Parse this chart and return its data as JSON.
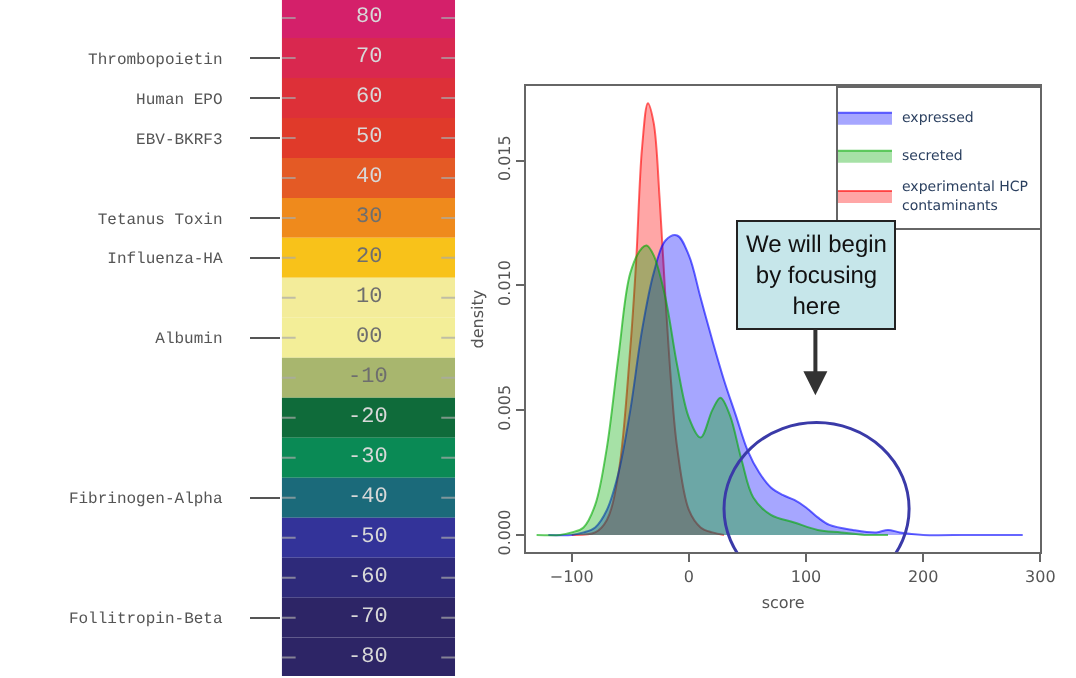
{
  "chart_data": [
    {
      "type": "heatmap",
      "categories": [
        null
      ],
      "y_categories": [
        null,
        null,
        null,
        null,
        null,
        null,
        null,
        null,
        null,
        null,
        null,
        null,
        null,
        null,
        null,
        null,
        null
      ],
      "y2_categories": [
        null,
        "Thrombopoietin",
        "Human EPO",
        "EBV-BKRF3",
        null,
        "Tetanus Toxin",
        "Influenza-HA",
        null,
        "Albumin",
        null,
        null,
        null,
        "Fibrinogen-Alpha",
        null,
        null,
        "Follitropin-Beta",
        null
      ],
      "cells": [
        [
          80
        ],
        [
          70
        ],
        [
          60
        ],
        [
          50
        ],
        [
          40
        ],
        [
          30
        ],
        [
          20
        ],
        [
          10
        ],
        [
          0
        ],
        [
          -10
        ],
        [
          -20
        ],
        [
          -30
        ],
        [
          -40
        ],
        [
          -50
        ],
        [
          -60
        ],
        [
          -70
        ],
        [
          -80
        ]
      ],
      "cell_labels": [
        [
          "80"
        ],
        [
          "70"
        ],
        [
          "60"
        ],
        [
          "50"
        ],
        [
          "40"
        ],
        [
          "30"
        ],
        [
          "20"
        ],
        [
          "10"
        ],
        [
          "00"
        ],
        [
          "-10"
        ],
        [
          "-20"
        ],
        [
          "-30"
        ],
        [
          "-40"
        ],
        [
          "-50"
        ],
        [
          "-60"
        ],
        [
          "-70"
        ],
        [
          "-80"
        ]
      ],
      "colors": [
        "#d4206a",
        "#d9284f",
        "#dd3038",
        "#e03a2a",
        "#e45a25",
        "#ef8a1c",
        "#f8c21a",
        "#f3ec9a",
        "#f3ee98",
        "#a8b66e",
        "#0f6b3a",
        "#0a8a55",
        "#1b6a7a",
        "#333399",
        "#2e2a7a",
        "#2d2566",
        "#2d2566"
      ]
    },
    {
      "type": "area",
      "xlabel": "score",
      "ylabel": "density",
      "xlim": [
        -139,
        300
      ],
      "xticks": [
        -100,
        0,
        100,
        200,
        300
      ],
      "ylim": [
        -0.0007,
        0.018
      ],
      "yticks": [
        {
          "value": 0,
          "label": "0.000"
        },
        {
          "value": 0.005,
          "label": "0.005"
        },
        {
          "value": 0.01,
          "label": "0.010"
        },
        {
          "value": 0.015,
          "label": "0.015"
        }
      ],
      "legend": "top right",
      "series": [
        {
          "name": "experimental HCP contaminants",
          "color": "#ff0000",
          "x": [
            -100,
            -80,
            -70,
            -60,
            -50,
            -45,
            -40,
            -35,
            -30,
            -25,
            -20,
            -15,
            -10,
            0,
            10,
            20,
            30
          ],
          "values": [
            0,
            0.0001,
            0.0006,
            0.0025,
            0.0075,
            0.011,
            0.0155,
            0.0173,
            0.0165,
            0.0135,
            0.0095,
            0.006,
            0.0035,
            0.001,
            0.0003,
            0.0001,
            0
          ]
        },
        {
          "name": "expressed",
          "color": "#0000ff",
          "x": [
            -120,
            -100,
            -90,
            -80,
            -70,
            -60,
            -50,
            -40,
            -30,
            -20,
            -10,
            0,
            10,
            20,
            30,
            40,
            50,
            60,
            70,
            80,
            90,
            100,
            110,
            120,
            140,
            160,
            170,
            180,
            200,
            240,
            285
          ],
          "values": [
            0,
            0,
            0.0001,
            0.0003,
            0.001,
            0.0025,
            0.005,
            0.0082,
            0.0105,
            0.0118,
            0.012,
            0.0112,
            0.0095,
            0.0078,
            0.0062,
            0.0048,
            0.0034,
            0.0025,
            0.0019,
            0.0016,
            0.0014,
            0.0011,
            0.0007,
            0.0004,
            0.0002,
            0.0001,
            0.0002,
            0.0001,
            0,
            0,
            0
          ]
        },
        {
          "name": "secreted",
          "color": "#00aa00",
          "x": [
            -130,
            -110,
            -100,
            -90,
            -80,
            -70,
            -60,
            -50,
            -40,
            -36,
            -30,
            -20,
            -10,
            0,
            10,
            20,
            27,
            35,
            45,
            55,
            70,
            90,
            110,
            130,
            150,
            170
          ],
          "values": [
            0,
            0,
            0.0001,
            0.0003,
            0.0012,
            0.0035,
            0.0072,
            0.0105,
            0.0115,
            0.0116,
            0.0112,
            0.0095,
            0.0068,
            0.0047,
            0.0039,
            0.005,
            0.0055,
            0.0048,
            0.003,
            0.0015,
            0.0008,
            0.0005,
            0.0002,
            0.0001,
            0,
            0
          ]
        }
      ],
      "annotations": [
        "We will begin by focusing here"
      ]
    }
  ]
}
